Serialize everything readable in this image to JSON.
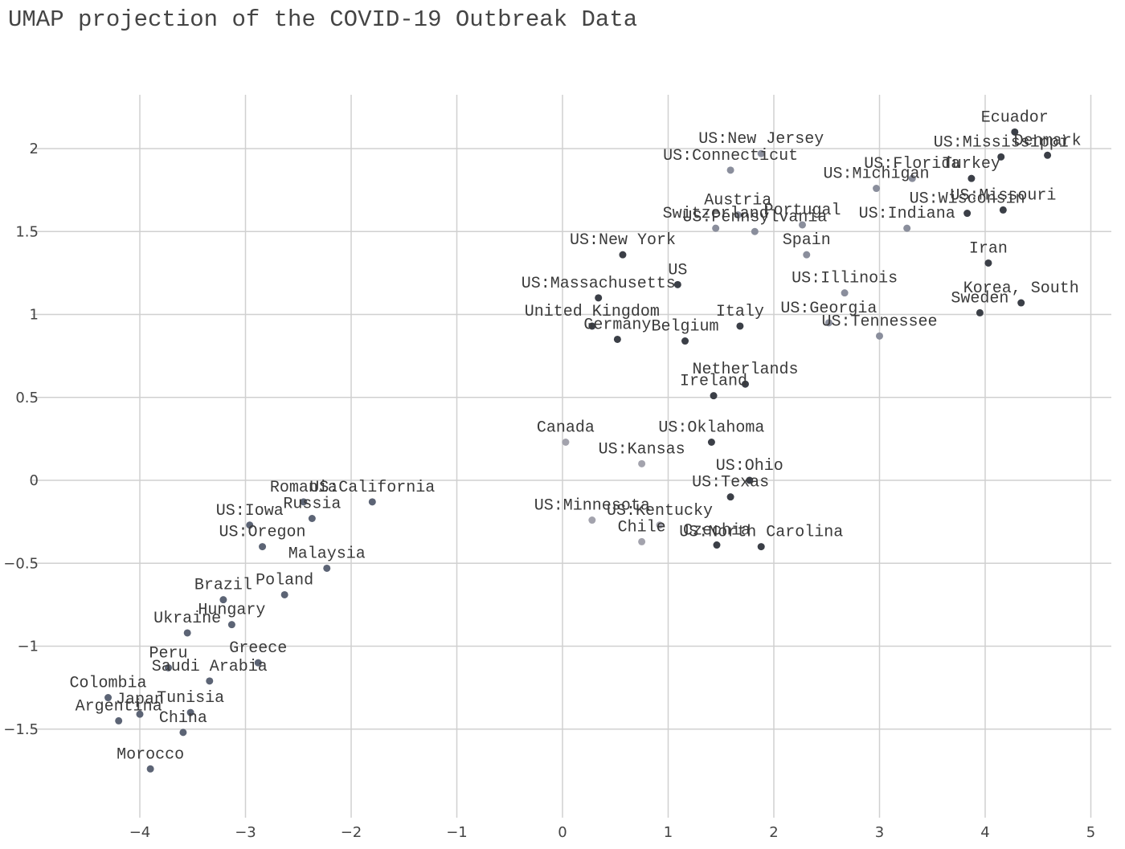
{
  "chart_data": {
    "type": "scatter",
    "title": "UMAP projection of the COVID-19 Outbreak Data",
    "xlabel": "",
    "ylabel": "",
    "xlim": [
      -4.85,
      5.15
    ],
    "ylim": [
      -1.95,
      2.3
    ],
    "x_ticks": [
      -4,
      -3,
      -2,
      -1,
      0,
      1,
      2,
      3,
      4,
      5
    ],
    "y_ticks": [
      2,
      1.5,
      1,
      0.5,
      0,
      -0.5,
      -1,
      -1.5
    ],
    "x_tick_labels": [
      "−4",
      "−3",
      "−2",
      "−1",
      "0",
      "1",
      "2",
      "3",
      "4",
      "5"
    ],
    "y_tick_labels": [
      "2",
      "1.5",
      "1",
      "0.5",
      "0",
      "−0.5",
      "−1",
      "−1.5"
    ],
    "grid": true,
    "colors": {
      "dark": "#3b3f47",
      "mid": "#5c6475",
      "light": "#8a8e9c",
      "lighter": "#a3a3ad"
    },
    "points": [
      {
        "label": "Ecuador",
        "x": 4.28,
        "y": 2.1,
        "tone": "dark"
      },
      {
        "label": "Denmark",
        "x": 4.59,
        "y": 1.96,
        "tone": "dark"
      },
      {
        "label": "US:Mississippi",
        "x": 4.15,
        "y": 1.95,
        "tone": "dark"
      },
      {
        "label": "Turkey",
        "x": 3.87,
        "y": 1.82,
        "tone": "dark"
      },
      {
        "label": "US:Missouri",
        "x": 4.17,
        "y": 1.63,
        "tone": "dark"
      },
      {
        "label": "US:Wisconsin",
        "x": 3.83,
        "y": 1.61,
        "tone": "dark"
      },
      {
        "label": "US:New Jersey",
        "x": 1.88,
        "y": 1.97,
        "tone": "light"
      },
      {
        "label": "US:Connecticut",
        "x": 1.59,
        "y": 1.87,
        "tone": "light"
      },
      {
        "label": "US:Florida",
        "x": 3.31,
        "y": 1.82,
        "tone": "light"
      },
      {
        "label": "US:Michigan",
        "x": 2.97,
        "y": 1.76,
        "tone": "light"
      },
      {
        "label": "Austria",
        "x": 1.66,
        "y": 1.6,
        "tone": "light"
      },
      {
        "label": "Portugal",
        "x": 2.27,
        "y": 1.54,
        "tone": "light"
      },
      {
        "label": "Switzerland",
        "x": 1.45,
        "y": 1.52,
        "tone": "light"
      },
      {
        "label": "US:Pennsylvania",
        "x": 1.82,
        "y": 1.5,
        "tone": "light"
      },
      {
        "label": "US:Indiana",
        "x": 3.26,
        "y": 1.52,
        "tone": "light"
      },
      {
        "label": "US:New York",
        "x": 0.57,
        "y": 1.36,
        "tone": "dark"
      },
      {
        "label": "Spain",
        "x": 2.31,
        "y": 1.36,
        "tone": "light"
      },
      {
        "label": "Iran",
        "x": 4.03,
        "y": 1.31,
        "tone": "dark"
      },
      {
        "label": "US",
        "x": 1.09,
        "y": 1.18,
        "tone": "dark"
      },
      {
        "label": "US:Massachusetts",
        "x": 0.34,
        "y": 1.1,
        "tone": "dark"
      },
      {
        "label": "US:Illinois",
        "x": 2.67,
        "y": 1.13,
        "tone": "light"
      },
      {
        "label": "Korea, South",
        "x": 4.34,
        "y": 1.07,
        "tone": "dark"
      },
      {
        "label": "Sweden",
        "x": 3.95,
        "y": 1.01,
        "tone": "dark"
      },
      {
        "label": "United Kingdom",
        "x": 0.28,
        "y": 0.93,
        "tone": "dark"
      },
      {
        "label": "Italy",
        "x": 1.68,
        "y": 0.93,
        "tone": "dark"
      },
      {
        "label": "US:Georgia",
        "x": 2.52,
        "y": 0.95,
        "tone": "light"
      },
      {
        "label": "Germany",
        "x": 0.52,
        "y": 0.85,
        "tone": "dark"
      },
      {
        "label": "Belgium",
        "x": 1.16,
        "y": 0.84,
        "tone": "dark"
      },
      {
        "label": "US:Tennessee",
        "x": 3.0,
        "y": 0.87,
        "tone": "light"
      },
      {
        "label": "Netherlands",
        "x": 1.73,
        "y": 0.58,
        "tone": "dark"
      },
      {
        "label": "Ireland",
        "x": 1.43,
        "y": 0.51,
        "tone": "dark"
      },
      {
        "label": "Canada",
        "x": 0.03,
        "y": 0.23,
        "tone": "lighter"
      },
      {
        "label": "US:Oklahoma",
        "x": 1.41,
        "y": 0.23,
        "tone": "dark"
      },
      {
        "label": "US:Kansas",
        "x": 0.75,
        "y": 0.1,
        "tone": "lighter"
      },
      {
        "label": "US:Ohio",
        "x": 1.77,
        "y": 0.0,
        "tone": "dark"
      },
      {
        "label": "US:Texas",
        "x": 1.59,
        "y": -0.1,
        "tone": "dark"
      },
      {
        "label": "US:Minnesota",
        "x": 0.28,
        "y": -0.24,
        "tone": "lighter"
      },
      {
        "label": "US:Kentucky",
        "x": 0.92,
        "y": -0.27,
        "tone": "lighter"
      },
      {
        "label": "Chile",
        "x": 0.75,
        "y": -0.37,
        "tone": "lighter"
      },
      {
        "label": "Czechia",
        "x": 1.46,
        "y": -0.39,
        "tone": "dark"
      },
      {
        "label": "US:North Carolina",
        "x": 1.88,
        "y": -0.4,
        "tone": "dark"
      },
      {
        "label": "Romania",
        "x": -2.45,
        "y": -0.13,
        "tone": "mid"
      },
      {
        "label": "US:California",
        "x": -1.8,
        "y": -0.13,
        "tone": "mid"
      },
      {
        "label": "Russia",
        "x": -2.37,
        "y": -0.23,
        "tone": "mid"
      },
      {
        "label": "US:Iowa",
        "x": -2.96,
        "y": -0.27,
        "tone": "mid"
      },
      {
        "label": "US:Oregon",
        "x": -2.84,
        "y": -0.4,
        "tone": "mid"
      },
      {
        "label": "Malaysia",
        "x": -2.23,
        "y": -0.53,
        "tone": "mid"
      },
      {
        "label": "Poland",
        "x": -2.63,
        "y": -0.69,
        "tone": "mid"
      },
      {
        "label": "Brazil",
        "x": -3.21,
        "y": -0.72,
        "tone": "mid"
      },
      {
        "label": "Hungary",
        "x": -3.13,
        "y": -0.87,
        "tone": "mid"
      },
      {
        "label": "Ukraine",
        "x": -3.55,
        "y": -0.92,
        "tone": "mid"
      },
      {
        "label": "Greece",
        "x": -2.88,
        "y": -1.1,
        "tone": "mid"
      },
      {
        "label": "Peru",
        "x": -3.73,
        "y": -1.13,
        "tone": "mid"
      },
      {
        "label": "Saudi Arabia",
        "x": -3.34,
        "y": -1.21,
        "tone": "mid"
      },
      {
        "label": "Colombia",
        "x": -4.3,
        "y": -1.31,
        "tone": "mid"
      },
      {
        "label": "Japan",
        "x": -4.0,
        "y": -1.41,
        "tone": "mid"
      },
      {
        "label": "Tunisia",
        "x": -3.52,
        "y": -1.4,
        "tone": "mid"
      },
      {
        "label": "Argentina",
        "x": -4.2,
        "y": -1.45,
        "tone": "mid"
      },
      {
        "label": "China",
        "x": -3.59,
        "y": -1.52,
        "tone": "mid"
      },
      {
        "label": "Morocco",
        "x": -3.9,
        "y": -1.74,
        "tone": "mid"
      }
    ]
  }
}
